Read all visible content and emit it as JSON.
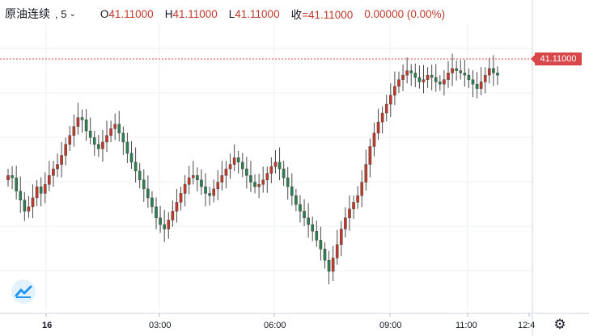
{
  "header": {
    "symbol": "原油连续",
    "interval": ", 5",
    "open_label": "O",
    "open_value": "41.11000",
    "high_label": "H",
    "high_value": "41.11000",
    "low_label": "L",
    "low_value": "41.11000",
    "close_label": "收",
    "close_value": "=41.11000",
    "change": "0.00000 (0.00%)"
  },
  "price_tag": "41.11000",
  "time_labels": [
    "16",
    "03:00",
    "06:00",
    "09:00",
    "11:00",
    "12:4"
  ],
  "icons": {
    "logo": "tradingview-logo-icon",
    "settings": "gear-icon",
    "chevron": "chevron-down-icon"
  },
  "colors": {
    "up": "#c0392b",
    "down": "#2e7d4f",
    "last_price_line": "#d8474a",
    "grid": "#eceff2"
  },
  "chart_data": {
    "type": "candlestick",
    "x_ticks": [
      "16",
      "03:00",
      "06:00",
      "09:00",
      "11:00",
      "12:4"
    ],
    "last_price": 41.11,
    "y_axis_visible_labels": [
      "41.11000"
    ],
    "series": [
      {
        "candle_count": 120,
        "close_levels_relative": [
          0.43,
          0.42,
          0.36,
          0.32,
          0.27,
          0.29,
          0.33,
          0.38,
          0.35,
          0.39,
          0.43,
          0.46,
          0.48,
          0.52,
          0.57,
          0.61,
          0.65,
          0.69,
          0.68,
          0.63,
          0.6,
          0.57,
          0.55,
          0.58,
          0.61,
          0.64,
          0.66,
          0.62,
          0.58,
          0.53,
          0.49,
          0.45,
          0.41,
          0.37,
          0.33,
          0.29,
          0.24,
          0.21,
          0.19,
          0.23,
          0.27,
          0.31,
          0.35,
          0.39,
          0.42,
          0.43,
          0.41,
          0.38,
          0.35,
          0.34,
          0.37,
          0.4,
          0.43,
          0.46,
          0.48,
          0.51,
          0.49,
          0.46,
          0.43,
          0.4,
          0.38,
          0.39,
          0.41,
          0.44,
          0.47,
          0.49,
          0.46,
          0.42,
          0.38,
          0.34,
          0.3,
          0.27,
          0.24,
          0.21,
          0.18,
          0.14,
          0.1,
          0.05,
          0.0,
          0.06,
          0.12,
          0.19,
          0.24,
          0.28,
          0.31,
          0.34,
          0.4,
          0.48,
          0.56,
          0.62,
          0.67,
          0.71,
          0.75,
          0.79,
          0.83,
          0.86,
          0.88,
          0.9,
          0.89,
          0.87,
          0.85,
          0.86,
          0.88,
          0.87,
          0.85,
          0.84,
          0.86,
          0.89,
          0.91,
          0.9,
          0.89,
          0.88,
          0.86,
          0.84,
          0.82,
          0.85,
          0.88,
          0.91,
          0.89,
          0.88
        ]
      }
    ]
  }
}
